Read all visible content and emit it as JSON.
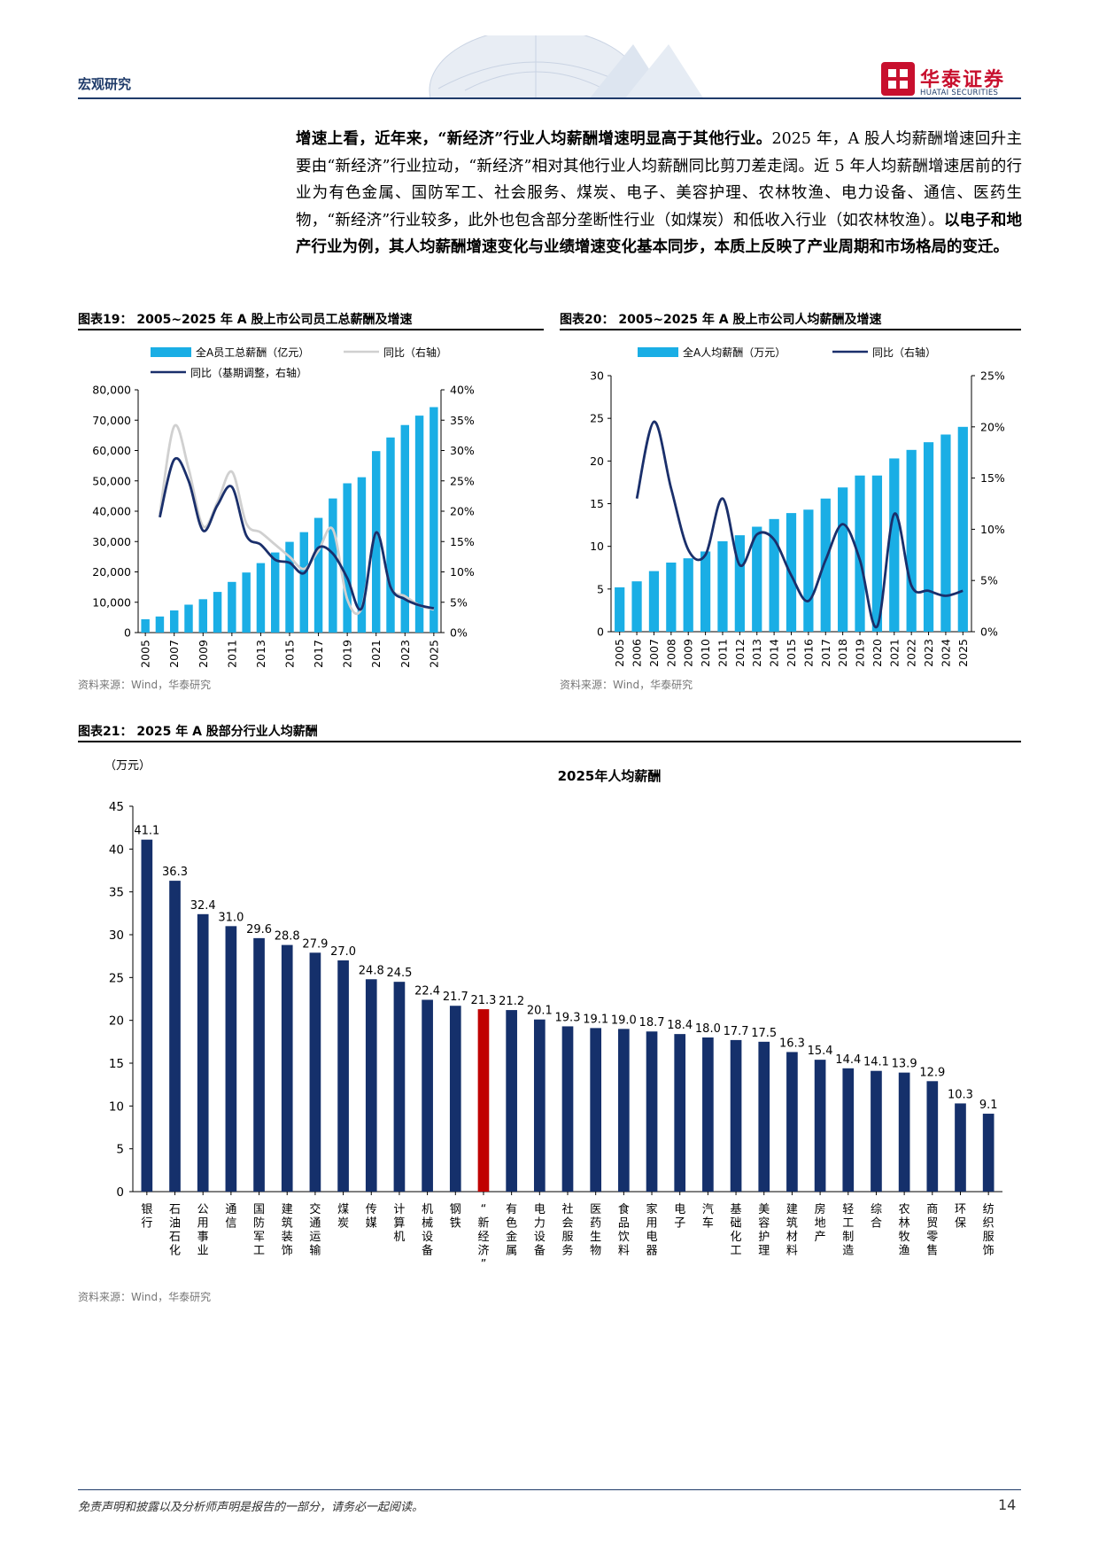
{
  "header": {
    "section": "宏观研究",
    "logo_cn": "华泰证券",
    "logo_en": "HUATAI SECURITIES"
  },
  "paragraph": {
    "part1": "增速上看，近年来，“新经济”行业人均薪酬增速明显高于其他行业。",
    "part2": "2025 年，A 股人均薪酬增速回升主要由“新经济”行业拉动，“新经济”相对其他行业人均薪酬同比剪刀差走阔。近 5 年人均薪酬增速居前的行业为有色金属、国防军工、社会服务、煤炭、电子、美容护理、农林牧渔、电力设备、通信、医药生物，“新经济”行业较多，此外也包含部分垄断性行业（如煤炭）和低收入行业（如农林牧渔）。",
    "part3": "以电子和地产行业为例，其人均薪酬增速变化与业绩增速变化基本同步，本质上反映了产业周期和市场格局的变迁。"
  },
  "fig19": {
    "title": "图表19：  2005~2025 年 A 股上市公司员工总薪酬及增速",
    "source": "资料来源：Wind，华泰研究"
  },
  "fig20": {
    "title": "图表20：  2005~2025 年 A 股上市公司人均薪酬及增速",
    "source": "资料来源：Wind，华泰研究"
  },
  "fig21": {
    "title": "图表21：  2025 年 A 股部分行业人均薪酬",
    "source": "资料来源：Wind，华泰研究"
  },
  "footer": {
    "disclaimer": "免责声明和披露以及分析师声明是报告的一部分，请务必一起阅读。",
    "page": "14"
  },
  "chart_data": [
    {
      "type": "bar",
      "legend": [
        "全A员工总薪酬（亿元）",
        "同比（右轴）",
        "同比（基期调整，右轴）"
      ],
      "x": [
        2005,
        2006,
        2007,
        2008,
        2009,
        2010,
        2011,
        2012,
        2013,
        2014,
        2015,
        2016,
        2017,
        2018,
        2019,
        2020,
        2021,
        2022,
        2023,
        2024,
        2025
      ],
      "x_ticks": [
        "2005",
        "2007",
        "2009",
        "2011",
        "2013",
        "2015",
        "2017",
        "2019",
        "2021",
        "2023",
        "2025"
      ],
      "series": [
        {
          "name": "全A员工总薪酬（亿元）",
          "kind": "bar",
          "axis": "left",
          "values": [
            4400,
            5300,
            7300,
            9200,
            11000,
            13400,
            16700,
            19800,
            22900,
            26400,
            29900,
            33100,
            37800,
            44200,
            49200,
            51200,
            59800,
            64300,
            68400,
            71500,
            74300
          ]
        },
        {
          "name": "同比（右轴）",
          "kind": "line",
          "axis": "right",
          "color": "#d0d0d0",
          "values": [
            null,
            19.5,
            34,
            27,
            17.5,
            21.5,
            26.5,
            18,
            16.5,
            14.5,
            12.5,
            10.5,
            13.5,
            17,
            5.5,
            4,
            16.5,
            7.5,
            6,
            4.5,
            3.8
          ]
        },
        {
          "name": "同比（基期调整，右轴）",
          "kind": "line",
          "axis": "right",
          "color": "#1a2f6b",
          "values": [
            null,
            19,
            28.5,
            25,
            16.8,
            21,
            24,
            16,
            14.5,
            12,
            11.5,
            9.8,
            14,
            13,
            9,
            4,
            16.5,
            7.5,
            5.5,
            4.5,
            4
          ]
        }
      ],
      "ylim_left": [
        0,
        80000
      ],
      "ylim_right": [
        0,
        40
      ],
      "y_ticks_left": [
        "0",
        "10,000",
        "20,000",
        "30,000",
        "40,000",
        "50,000",
        "60,000",
        "70,000",
        "80,000"
      ],
      "y_ticks_right": [
        "0%",
        "5%",
        "10%",
        "15%",
        "20%",
        "25%",
        "30%",
        "35%",
        "40%"
      ]
    },
    {
      "type": "bar",
      "legend": [
        "全A人均薪酬（万元）",
        "同比（右轴）"
      ],
      "x": [
        2005,
        2006,
        2007,
        2008,
        2009,
        2010,
        2011,
        2012,
        2013,
        2014,
        2015,
        2016,
        2017,
        2018,
        2019,
        2020,
        2021,
        2022,
        2023,
        2024,
        2025
      ],
      "x_ticks": [
        "2005",
        "2006",
        "2007",
        "2008",
        "2009",
        "2010",
        "2011",
        "2012",
        "2013",
        "2014",
        "2015",
        "2016",
        "2017",
        "2018",
        "2019",
        "2020",
        "2021",
        "2022",
        "2023",
        "2024",
        "2025"
      ],
      "series": [
        {
          "name": "全A人均薪酬（万元）",
          "kind": "bar",
          "axis": "left",
          "values": [
            5.2,
            5.9,
            7.1,
            8.1,
            8.6,
            9.4,
            10.6,
            11.3,
            12.3,
            13.2,
            13.9,
            14.3,
            15.6,
            16.9,
            18.3,
            18.3,
            20.3,
            21.3,
            22.2,
            23.1,
            24.0
          ]
        },
        {
          "name": "同比（右轴）",
          "kind": "line",
          "axis": "right",
          "color": "#1a2f6b",
          "values": [
            null,
            13,
            20.5,
            14,
            8,
            7.5,
            13,
            6.5,
            9.5,
            9,
            5.5,
            3,
            7,
            10.5,
            7,
            0.5,
            11.5,
            4.5,
            4,
            3.5,
            4
          ]
        }
      ],
      "ylim_left": [
        0,
        30
      ],
      "ylim_right": [
        0,
        25
      ],
      "y_ticks_left": [
        "0",
        "5",
        "10",
        "15",
        "20",
        "25",
        "30"
      ],
      "y_ticks_right": [
        "0%",
        "5%",
        "10%",
        "15%",
        "20%",
        "25%"
      ]
    },
    {
      "type": "bar",
      "title": "2025年人均薪酬",
      "ylabel": "（万元）",
      "ylim": [
        0,
        45
      ],
      "y_ticks": [
        "0",
        "5",
        "10",
        "15",
        "20",
        "25",
        "30",
        "35",
        "40",
        "45"
      ],
      "highlight": "“新经济”",
      "categories": [
        "银行",
        "石油石化",
        "公用事业",
        "通信",
        "国防军工",
        "建筑装饰",
        "交通运输",
        "煤炭",
        "传媒",
        "计算机",
        "机械设备",
        "钢铁",
        "“新经济”",
        "有色金属",
        "电力设备",
        "社会服务",
        "医药生物",
        "食品饮料",
        "家用电器",
        "电子",
        "汽车",
        "基础化工",
        "美容护理",
        "建筑材料",
        "房地产",
        "轻工制造",
        "综合",
        "农林牧渔",
        "商贸零售",
        "环保",
        "纺织服饰"
      ],
      "values": [
        41.1,
        36.3,
        32.4,
        31.0,
        29.6,
        28.8,
        27.9,
        27.0,
        24.8,
        24.5,
        22.4,
        21.7,
        21.3,
        21.2,
        20.1,
        19.3,
        19.1,
        19.0,
        18.7,
        18.4,
        18.0,
        17.7,
        17.5,
        16.3,
        15.4,
        14.4,
        14.1,
        13.9,
        12.9,
        10.3,
        9.1
      ],
      "labels": [
        "41.1",
        "36.3",
        "32.4",
        "31.0",
        "29.6",
        "28.8",
        "27.9",
        "27.0",
        "24.8",
        "24.5",
        "22.4",
        "21.7",
        "21.3",
        "21.2",
        "20.1",
        "19.3",
        "19.1",
        "19.0",
        "18.7",
        "18.4",
        "18.0",
        "17.7",
        "17.5",
        "16.3",
        "15.4",
        "14.4",
        "14.1",
        "13.9",
        "12.9",
        "10.3",
        "9.1"
      ],
      "colors": {
        "bar": "#15306b",
        "highlight": "#c00000"
      }
    }
  ],
  "colors": {
    "bar_light": "#1aaee5",
    "navy": "#1a2f6b",
    "grey_line": "#d0d0d0",
    "brand_red": "#c8102e"
  }
}
